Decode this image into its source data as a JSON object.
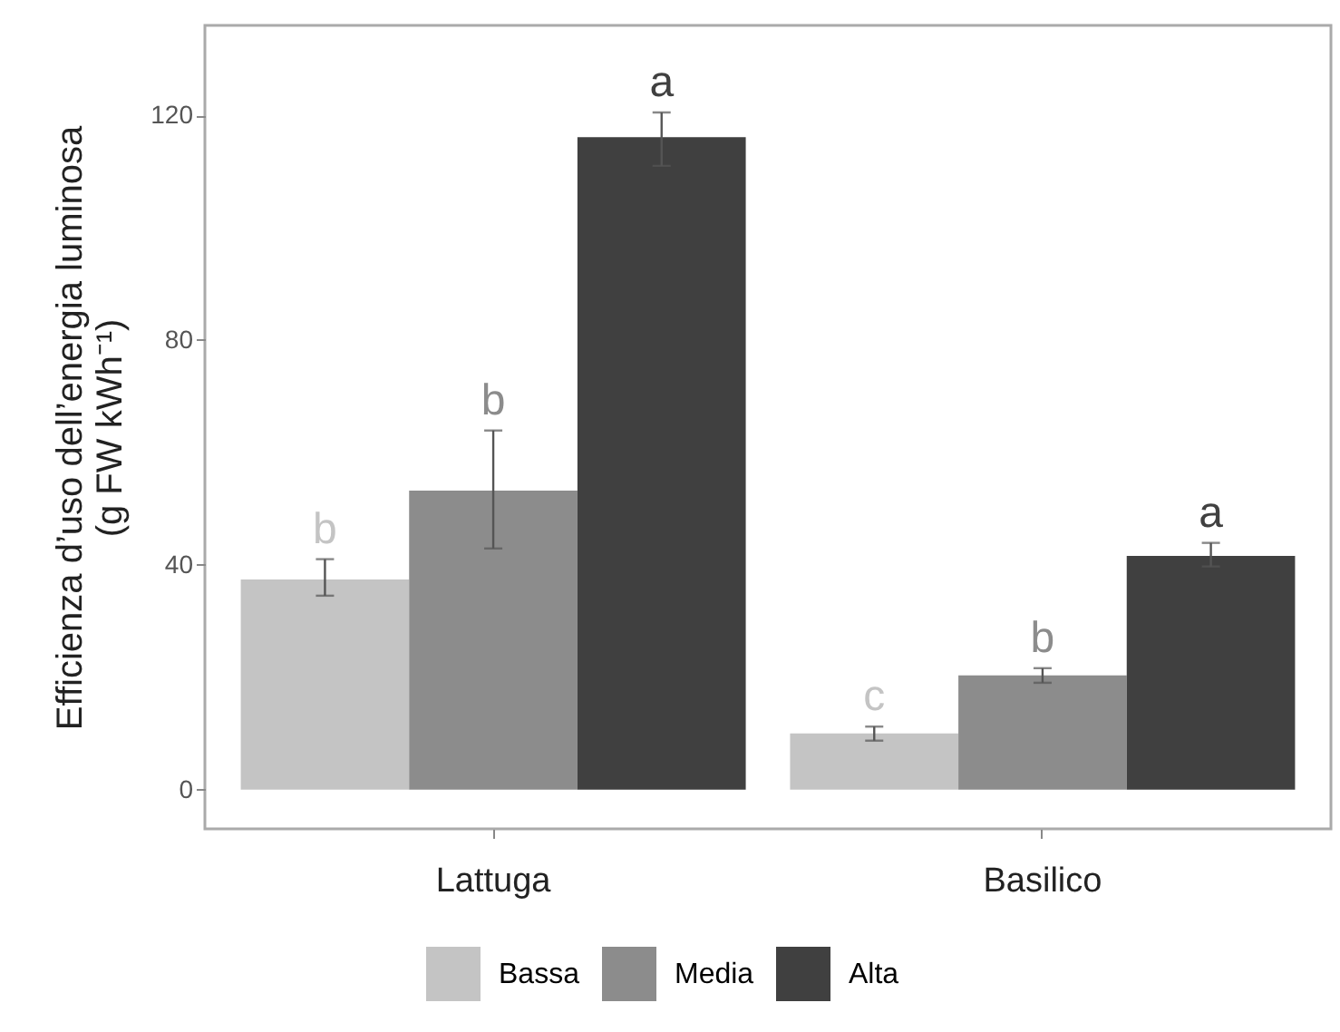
{
  "chart_data": {
    "type": "bar",
    "ylabel": "Efficienza d’uso dell’energia luminosa\n(g FW kWh⁻¹)",
    "categories": [
      "Lattuga",
      "Basilico"
    ],
    "series": [
      {
        "name": "Bassa",
        "color": "#c4c4c4",
        "values": [
          37.4,
          10
        ],
        "errors": [
          [
            34.5,
            41
          ],
          [
            8.7,
            11.2
          ]
        ],
        "value_labels": [
          "b",
          "c"
        ]
      },
      {
        "name": "Media",
        "color": "#8c8c8c",
        "values": [
          53.2,
          20.3
        ],
        "errors": [
          [
            42.9,
            63.9
          ],
          [
            19,
            21.6
          ]
        ],
        "value_labels": [
          "b",
          "b"
        ]
      },
      {
        "name": "Alta",
        "color": "#404040",
        "values": [
          116.1,
          41.6
        ],
        "errors": [
          [
            111,
            120.5
          ],
          [
            39.7,
            43.9
          ]
        ],
        "value_labels": [
          "a",
          "a"
        ]
      }
    ],
    "ylim": [
      -7,
      136
    ],
    "yticks": [
      0,
      40,
      80,
      120
    ],
    "grid": false,
    "legend": "bottom"
  }
}
